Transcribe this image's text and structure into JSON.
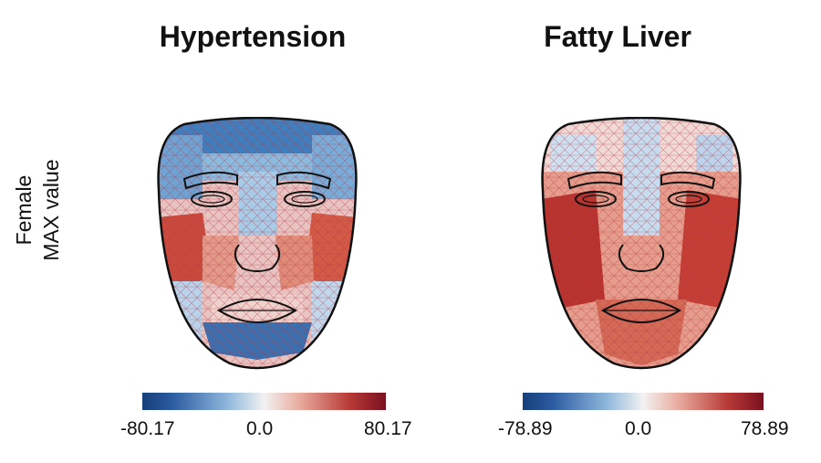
{
  "row_label": {
    "line1": "Female",
    "line2": "MAX value"
  },
  "panels": [
    {
      "title": "Hypertension",
      "cbar_min": "-80.17",
      "cbar_mid": "0.0",
      "cbar_max": "80.17"
    },
    {
      "title": "Fatty Liver",
      "cbar_min": "-78.89",
      "cbar_mid": "0.0",
      "cbar_max": "78.89"
    }
  ],
  "colormap": {
    "low": "#2a5aa0",
    "mid": "#f2f2f2",
    "high": "#7a1020"
  }
}
